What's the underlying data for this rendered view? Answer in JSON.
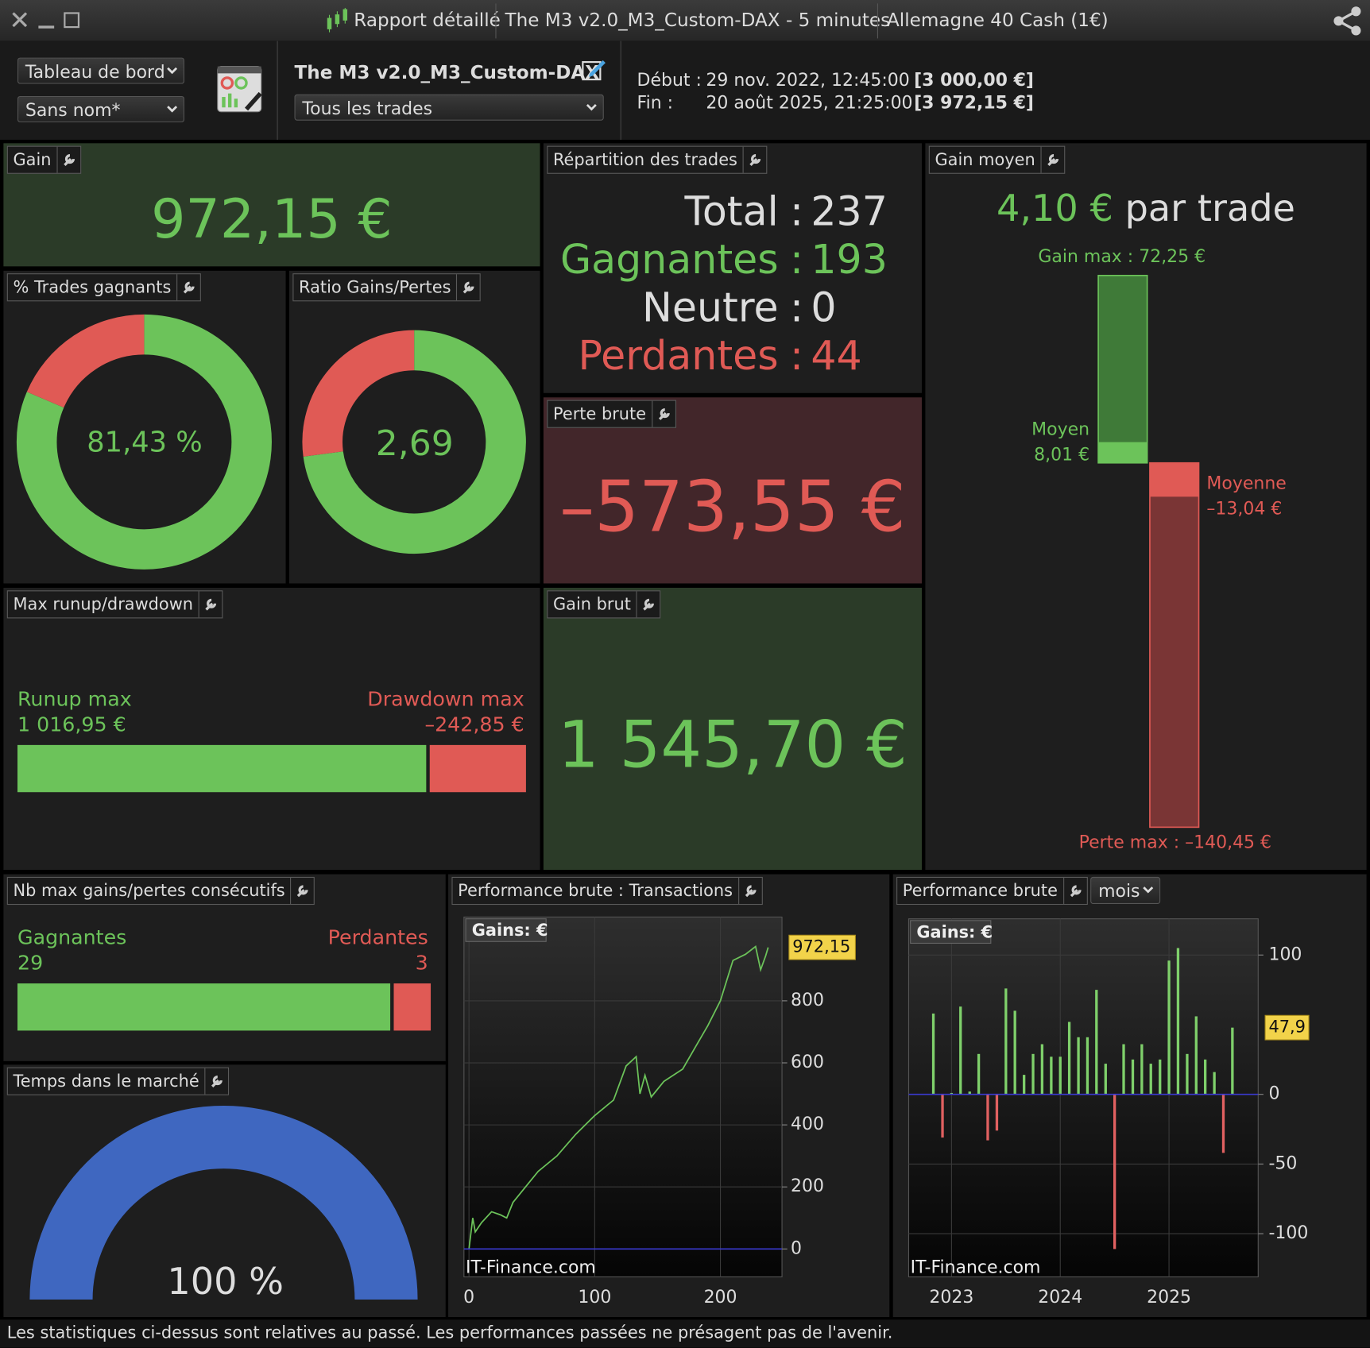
{
  "window": {
    "title": "Rapport détaillé",
    "system": "The M3 v2.0_M3_Custom-DAX - 5 minutes",
    "instrument": "Allemagne 40 Cash (1€)"
  },
  "toolbar": {
    "view": "Tableau de bord",
    "layout": "Sans nom*",
    "system_name": "The M3 v2.0_M3_Custom-DAX",
    "filter": "Tous les trades",
    "start_label": "Début :",
    "start_date": "29 nov. 2022, 12:45:00",
    "start_capital": "[3 000,00 €]",
    "end_label": "Fin :",
    "end_date": "20 août 2025, 21:25:00",
    "end_capital": "[3 972,15 €]"
  },
  "panels": {
    "gain": {
      "title": "Gain",
      "value": "972,15 €"
    },
    "win_rate": {
      "title": "% Trades gagnants",
      "value": 81.43,
      "label": "81,43 %"
    },
    "ratio": {
      "title": "Ratio Gains/Pertes",
      "value": 2.69,
      "label": "2,69"
    },
    "distribution": {
      "title": "Répartition des trades",
      "separator": ":",
      "rows": [
        {
          "label": "Total",
          "value": "237"
        },
        {
          "label": "Gagnantes",
          "value": "193"
        },
        {
          "label": "Neutre",
          "value": "0"
        },
        {
          "label": "Perdantes",
          "value": "44"
        }
      ]
    },
    "gross_loss": {
      "title": "Perte brute",
      "value": "–573,55 €"
    },
    "average": {
      "title": "Gain moyen",
      "value": "4,10 €",
      "suffix": "par trade",
      "max_gain_label": "Gain max :",
      "max_gain": {
        "value": 72.25,
        "label": "72,25 €"
      },
      "avg_win_label": "Moyen",
      "avg_win": {
        "value": 8.01,
        "label": "8,01 €"
      },
      "avg_loss_label": "Moyenne",
      "avg_loss": {
        "value": -13.04,
        "label": "–13,04 €"
      },
      "max_loss_label": "Perte max :",
      "max_loss": {
        "value": -140.45,
        "label": "–140,45 €"
      }
    },
    "runup": {
      "title": "Max runup/drawdown",
      "runup_label": "Runup max",
      "runup": {
        "value": 1016.95,
        "label": "1 016,95 €"
      },
      "drawdown_label": "Drawdown max",
      "drawdown": {
        "value": -242.85,
        "label": "–242,85 €"
      }
    },
    "gross_gain": {
      "title": "Gain brut",
      "value": "1 545,70 €"
    },
    "streaks": {
      "title": "Nb max gains/pertes consécutifs",
      "win_label": "Gagnantes",
      "wins": 29,
      "loss_label": "Perdantes",
      "losses": 3
    },
    "market_time": {
      "title": "Temps dans le marché",
      "value": 100,
      "label": "100 %"
    }
  },
  "chart_data": [
    {
      "type": "line",
      "title": "Performance brute : Transactions",
      "y_label": "Gains: €",
      "watermark": "IT-Finance.com",
      "x": [
        0,
        3,
        5,
        10,
        18,
        25,
        30,
        35,
        45,
        55,
        70,
        85,
        100,
        115,
        125,
        133,
        136,
        140,
        145,
        155,
        170,
        180,
        190,
        200,
        210,
        220,
        228,
        232,
        236,
        238
      ],
      "series": [
        {
          "color": "#6cc35a",
          "values": [
            0,
            100,
            55,
            85,
            120,
            110,
            100,
            150,
            200,
            250,
            300,
            370,
            430,
            480,
            590,
            620,
            500,
            560,
            490,
            540,
            580,
            650,
            720,
            800,
            930,
            950,
            975,
            900,
            945,
            972.15
          ]
        }
      ],
      "current": {
        "value": 972.15,
        "label": "972,15"
      },
      "xlim": [
        -4,
        249
      ],
      "xticks": [
        0,
        100,
        200
      ],
      "ylim": [
        -90,
        1070
      ],
      "yticks": [
        0,
        200,
        400,
        600,
        800
      ],
      "grid": true
    },
    {
      "type": "bar",
      "title": "Performance brute",
      "period": "mois",
      "y_label": "Gains: €",
      "watermark": "IT-Finance.com",
      "x": [
        2022.833,
        2022.917,
        2023,
        2023.083,
        2023.167,
        2023.25,
        2023.333,
        2023.417,
        2023.5,
        2023.583,
        2023.667,
        2023.75,
        2023.833,
        2023.917,
        2024,
        2024.083,
        2024.167,
        2024.25,
        2024.333,
        2024.417,
        2024.5,
        2024.583,
        2024.667,
        2024.75,
        2024.833,
        2024.917,
        2025,
        2025.083,
        2025.167,
        2025.25,
        2025.333,
        2025.417,
        2025.5,
        2025.583
      ],
      "values": [
        58,
        -31,
        1,
        63,
        2,
        29,
        -33,
        -26,
        76,
        60,
        14,
        29,
        36,
        27,
        27,
        52,
        41,
        41,
        75,
        22,
        -111,
        36,
        25,
        36,
        22,
        25,
        96,
        105,
        29,
        56,
        25,
        16,
        -42,
        47.9
      ],
      "colors": {
        "positive": "#7fd06b",
        "negative": "#e06060"
      },
      "current": {
        "value": 47.9,
        "label": "47,9"
      },
      "xlim": [
        2022.606,
        2025.82
      ],
      "xticks": [
        2023,
        2024,
        2025
      ],
      "ylim": [
        -131,
        126
      ],
      "yticks": [
        -100,
        -50,
        0,
        100
      ],
      "grid": true
    }
  ],
  "footer": "Les statistiques ci-dessus sont relatives au passé. Les performances passées ne présagent pas de l'avenir."
}
